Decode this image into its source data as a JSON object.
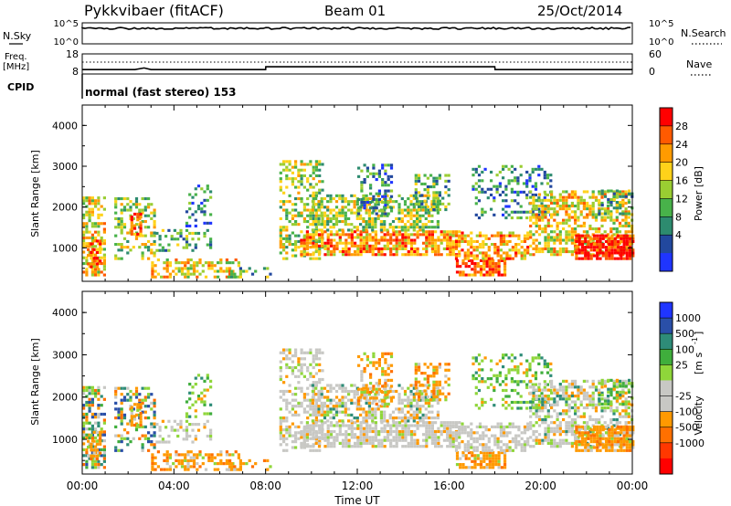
{
  "header": {
    "station": "Pykkvibaer (fitACF)",
    "beam": "Beam 01",
    "date": "25/Oct/2014"
  },
  "noise_panel": {
    "left_label": "N.Sky",
    "left_ticks": [
      "10^5",
      "10^0"
    ],
    "right_label": "N.Search",
    "right_ticks": [
      "10^5",
      "10^0"
    ]
  },
  "freq_panel": {
    "left_label_1": "Freq.",
    "left_label_2": "[MHz]",
    "left_ticks": [
      "18",
      "8"
    ],
    "right_label": "Nave",
    "right_ticks": [
      "60",
      "0"
    ]
  },
  "cpid_panel": {
    "label": "CPID",
    "text": "normal (fast stereo) 153"
  },
  "colors": {
    "power_scale": [
      "#1f35ff",
      "#22489e",
      "#2d8b6f",
      "#48b24a",
      "#9acd32",
      "#ffd21a",
      "#ff9b00",
      "#ff5a00",
      "#ff0000"
    ],
    "velocity_scale": [
      "#1f35ff",
      "#2a4fa8",
      "#2e8c78",
      "#3fae3c",
      "#8fd63a",
      "#c8c8c4",
      "#c8c8c4",
      "#ff9900",
      "#ff7000",
      "#ff3800",
      "#ff0000"
    ]
  },
  "chart_data": [
    {
      "type": "line",
      "panel": "noise",
      "description_source": "N.Sky / N.Search traces",
      "x": [
        "00:00",
        "04:00",
        "08:00",
        "12:00",
        "16:00",
        "20:00",
        "00:00"
      ],
      "series": [
        {
          "name": "N.Sky",
          "values": [
            100000,
            100000,
            100000,
            100000,
            100000,
            100000,
            100000
          ]
        }
      ],
      "ylim": [
        1,
        100000
      ],
      "yscale": "log"
    },
    {
      "type": "line",
      "panel": "frequency",
      "x_hours": [
        0,
        2.3,
        2.7,
        3.0,
        8.0,
        8.01,
        18.0,
        18.01,
        24.0
      ],
      "series": [
        {
          "name": "Freq.",
          "values": [
            10.2,
            10.2,
            11.0,
            10.2,
            10.2,
            11.6,
            11.6,
            10.2,
            10.2
          ]
        }
      ],
      "ylim": [
        8,
        18
      ],
      "ylabel": "Freq. [MHz]"
    },
    {
      "type": "heatmap",
      "panel": "power",
      "xlabel": "",
      "ylabel": "Slant Range [km]",
      "xlim": [
        "00:00",
        "00:00"
      ],
      "ylim": [
        180,
        4500
      ],
      "y_ticks": [
        1000,
        2000,
        3000,
        4000
      ],
      "colorbar_label": "Power [dB]",
      "colorbar_ticks": [
        4,
        8,
        12,
        16,
        20,
        24,
        28
      ],
      "cells_hours_km": [
        {
          "x": [
            0.0,
            1.0
          ],
          "y": [
            300,
            2300
          ],
          "level": "mixed"
        },
        {
          "x": [
            1.5,
            3.5
          ],
          "y": [
            300,
            2500
          ],
          "level": "mixed"
        },
        {
          "x": [
            3.5,
            6.5
          ],
          "y": [
            350,
            1200
          ],
          "level": "mixed"
        },
        {
          "x": [
            8.5,
            12.0
          ],
          "y": [
            600,
            3100
          ],
          "level": "mixed"
        },
        {
          "x": [
            12.0,
            16.5
          ],
          "y": [
            700,
            3000
          ],
          "level": "mixed"
        },
        {
          "x": [
            16.5,
            20.0
          ],
          "y": [
            300,
            3100
          ],
          "level": "mixed"
        },
        {
          "x": [
            20.0,
            24.0
          ],
          "y": [
            300,
            2500
          ],
          "level": "mixed"
        }
      ]
    },
    {
      "type": "heatmap",
      "panel": "velocity",
      "xlabel": "Time UT",
      "ylabel": "Slant Range [km]",
      "x_ticks": [
        "00:00",
        "04:00",
        "08:00",
        "12:00",
        "16:00",
        "20:00",
        "00:00"
      ],
      "ylim": [
        180,
        4500
      ],
      "y_ticks": [
        1000,
        2000,
        3000,
        4000
      ],
      "colorbar_label": "Velocity [m s-1]",
      "colorbar_ticks": [
        "1000",
        "500",
        "100",
        "25",
        "-25",
        "-100",
        "-500",
        "-1000"
      ]
    }
  ],
  "axis": {
    "x_ticks": [
      "00:00",
      "04:00",
      "08:00",
      "12:00",
      "16:00",
      "20:00",
      "00:00"
    ],
    "xlabel": "Time UT",
    "ylabel": "Slant Range [km]",
    "y_ticks": [
      "1000",
      "2000",
      "3000",
      "4000"
    ],
    "power_label": "Power [dB]",
    "power_ticks": [
      "4",
      "8",
      "12",
      "16",
      "20",
      "24",
      "28"
    ],
    "velocity_label_main": "Velocity",
    "velocity_label_unit": "[m s",
    "velocity_label_exp": "-1",
    "velocity_label_close": "]",
    "velocity_ticks": [
      "1000",
      "500",
      "100",
      "25",
      "-25",
      "-100",
      "-500",
      "-1000"
    ]
  }
}
